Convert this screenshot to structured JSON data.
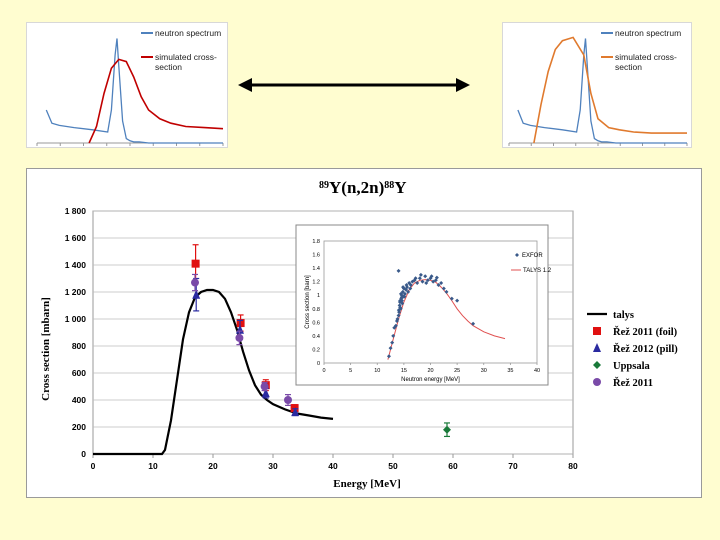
{
  "colors": {
    "background": "#fffdd0",
    "neutron": "#4f81bd",
    "sim_red": "#c00000",
    "sim_orange": "#e07a2e",
    "talys": "#000000",
    "rez2011_foil": "#e01010",
    "rez2012_pill": "#2a2aa0",
    "uppsala": "#1a7a3a",
    "rez2011": "#7a4aa8",
    "inset_exfor": "#3a5a8a",
    "inset_talys": "#e05050"
  },
  "chart_data": [
    {
      "type": "line",
      "id": "top-left",
      "legend": [
        "neutron spectrum",
        "simulated cross-section"
      ],
      "series": [
        {
          "name": "neutron spectrum",
          "x": [
            0.05,
            0.08,
            0.12,
            0.2,
            0.3,
            0.38,
            0.4,
            0.42,
            0.43,
            0.44,
            0.46,
            0.48,
            0.5,
            0.52,
            0.55,
            0.6,
            0.7,
            0.8,
            0.9,
            1.0
          ],
          "y": [
            0.3,
            0.18,
            0.16,
            0.14,
            0.12,
            0.1,
            0.3,
            0.8,
            0.95,
            0.7,
            0.2,
            0.04,
            0.02,
            0.01,
            0.01,
            0.0,
            0.0,
            0.0,
            0.0,
            0.0
          ]
        },
        {
          "name": "simulated cross-section",
          "x": [
            0.28,
            0.32,
            0.36,
            0.4,
            0.44,
            0.48,
            0.52,
            0.56,
            0.6,
            0.66,
            0.72,
            0.8,
            0.9,
            1.0
          ],
          "y": [
            0.0,
            0.15,
            0.45,
            0.68,
            0.76,
            0.74,
            0.6,
            0.42,
            0.3,
            0.22,
            0.18,
            0.15,
            0.14,
            0.13
          ]
        }
      ]
    },
    {
      "type": "line",
      "id": "top-right",
      "legend": [
        "neutron spectrum",
        "simulated cross-section"
      ],
      "series": [
        {
          "name": "neutron spectrum",
          "x": [
            0.05,
            0.08,
            0.12,
            0.2,
            0.3,
            0.38,
            0.4,
            0.42,
            0.43,
            0.44,
            0.46,
            0.48,
            0.5,
            0.52,
            0.55,
            0.6,
            0.7,
            0.8,
            0.9,
            1.0
          ],
          "y": [
            0.3,
            0.18,
            0.16,
            0.14,
            0.12,
            0.1,
            0.3,
            0.8,
            0.95,
            0.7,
            0.2,
            0.04,
            0.02,
            0.01,
            0.01,
            0.0,
            0.0,
            0.0,
            0.0,
            0.0
          ]
        },
        {
          "name": "simulated cross-section",
          "x": [
            0.14,
            0.18,
            0.22,
            0.26,
            0.3,
            0.36,
            0.42,
            0.46,
            0.5,
            0.56,
            0.62,
            0.7,
            0.8,
            0.9,
            1.0
          ],
          "y": [
            0.0,
            0.35,
            0.65,
            0.85,
            0.93,
            0.96,
            0.8,
            0.45,
            0.22,
            0.14,
            0.12,
            0.1,
            0.09,
            0.09,
            0.09
          ]
        }
      ]
    },
    {
      "type": "scatter",
      "id": "main",
      "title_prefix": "89",
      "title_main": "Y(n,2n)",
      "title_sup2": "88",
      "title_end": "Y",
      "xlabel": "Energy [MeV]",
      "ylabel": "Cross section [mbarn]",
      "xlim": [
        0,
        80
      ],
      "ylim": [
        0,
        1800
      ],
      "xticks": [
        "0",
        "10",
        "20",
        "30",
        "40",
        "50",
        "60",
        "70",
        "80"
      ],
      "yticks": [
        "0",
        "200",
        "400",
        "600",
        "800",
        "1 000",
        "1 200",
        "1 400",
        "1 600",
        "1 800"
      ],
      "series": [
        {
          "name": "talys",
          "kind": "line",
          "x": [
            0,
            11.5,
            12,
            13,
            14,
            15,
            16,
            17,
            18,
            19,
            20,
            21,
            22,
            23,
            24,
            25,
            26,
            27,
            28,
            29,
            30,
            32,
            34,
            36,
            38,
            40
          ],
          "y": [
            0,
            0,
            30,
            250,
            550,
            850,
            1050,
            1160,
            1200,
            1215,
            1215,
            1200,
            1150,
            1050,
            920,
            760,
            620,
            510,
            440,
            400,
            370,
            330,
            300,
            285,
            270,
            260
          ]
        },
        {
          "name": "Řež 2011 (foil)",
          "kind": "square",
          "x": [
            17.1,
            24.6,
            28.8,
            33.6
          ],
          "y": [
            1410,
            970,
            510,
            340
          ],
          "err": [
            140,
            60,
            40,
            25
          ]
        },
        {
          "name": "Řež 2012 (pill)",
          "kind": "triangle",
          "x": [
            17.2,
            24.5,
            28.8,
            33.7
          ],
          "y": [
            1180,
            920,
            450,
            310
          ],
          "err": [
            120,
            70,
            35,
            25
          ]
        },
        {
          "name": "Uppsala",
          "kind": "diamond",
          "x": [
            59.0
          ],
          "y": [
            180
          ],
          "err": [
            50
          ]
        },
        {
          "name": "Řež 2011",
          "kind": "circle",
          "x": [
            17.0,
            24.4,
            28.6,
            32.5
          ],
          "y": [
            1270,
            860,
            500,
            400
          ],
          "err": [
            60,
            50,
            30,
            40
          ]
        }
      ]
    },
    {
      "type": "scatter",
      "id": "inset",
      "xlabel": "Neutron energy [MeV]",
      "ylabel": "Cross section [barn]",
      "xlim": [
        0,
        40
      ],
      "ylim": [
        0,
        1.8
      ],
      "xticks": [
        "0",
        "5",
        "10",
        "15",
        "20",
        "25",
        "30",
        "35",
        "40"
      ],
      "yticks": [
        "0",
        "0.2",
        "0.4",
        "0.6",
        "0.8",
        "1",
        "1.2",
        "1.4",
        "1.6",
        "1.8"
      ],
      "legend": [
        "EXFOR",
        "TALYS 1.2"
      ],
      "series": [
        {
          "name": "TALYS 1.2",
          "kind": "line",
          "x": [
            12,
            13,
            14,
            15,
            16,
            17,
            18,
            19,
            20,
            21,
            22,
            23,
            24,
            25,
            26,
            27,
            28,
            30,
            32,
            34
          ],
          "y": [
            0.05,
            0.35,
            0.65,
            0.9,
            1.08,
            1.18,
            1.22,
            1.23,
            1.22,
            1.19,
            1.12,
            1.03,
            0.92,
            0.8,
            0.7,
            0.62,
            0.55,
            0.46,
            0.4,
            0.36
          ]
        },
        {
          "name": "EXFOR",
          "kind": "diamond",
          "x": [
            12.2,
            12.5,
            12.8,
            13.0,
            13.2,
            13.5,
            13.7,
            14.0,
            14.1,
            14.2,
            14.3,
            14.4,
            14.5,
            14.6,
            14.7,
            14.8,
            14.9,
            15.0,
            15.2,
            15.4,
            15.6,
            15.8,
            16.0,
            16.3,
            16.6,
            17.0,
            17.5,
            18.0,
            18.5,
            19.0,
            19.5,
            20.0,
            20.5,
            21.0,
            21.5,
            22.0,
            22.5,
            23.0,
            24.0,
            25.0,
            28.0,
            13.8,
            14.05,
            14.25,
            14.45,
            14.65,
            14.85,
            15.1,
            15.5,
            16.2,
            17.2,
            18.2,
            19.2,
            20.2,
            21.2,
            14.0,
            14.3,
            14.6
          ],
          "y": [
            0.1,
            0.22,
            0.3,
            0.4,
            0.52,
            0.55,
            0.62,
            0.7,
            0.75,
            0.85,
            0.92,
            0.8,
            0.95,
            1.0,
            0.88,
            1.05,
            0.98,
            1.1,
            1.02,
            1.08,
            1.12,
            1.05,
            1.18,
            1.15,
            1.2,
            1.22,
            1.18,
            1.25,
            1.2,
            1.28,
            1.22,
            1.25,
            1.2,
            1.22,
            1.15,
            1.18,
            1.1,
            1.05,
            0.95,
            0.92,
            0.58,
            0.65,
            0.78,
            0.9,
            1.02,
            0.92,
            1.12,
            0.98,
            1.15,
            1.1,
            1.25,
            1.3,
            1.18,
            1.28,
            1.26,
            1.36,
            0.82,
            0.97
          ]
        }
      ]
    }
  ]
}
